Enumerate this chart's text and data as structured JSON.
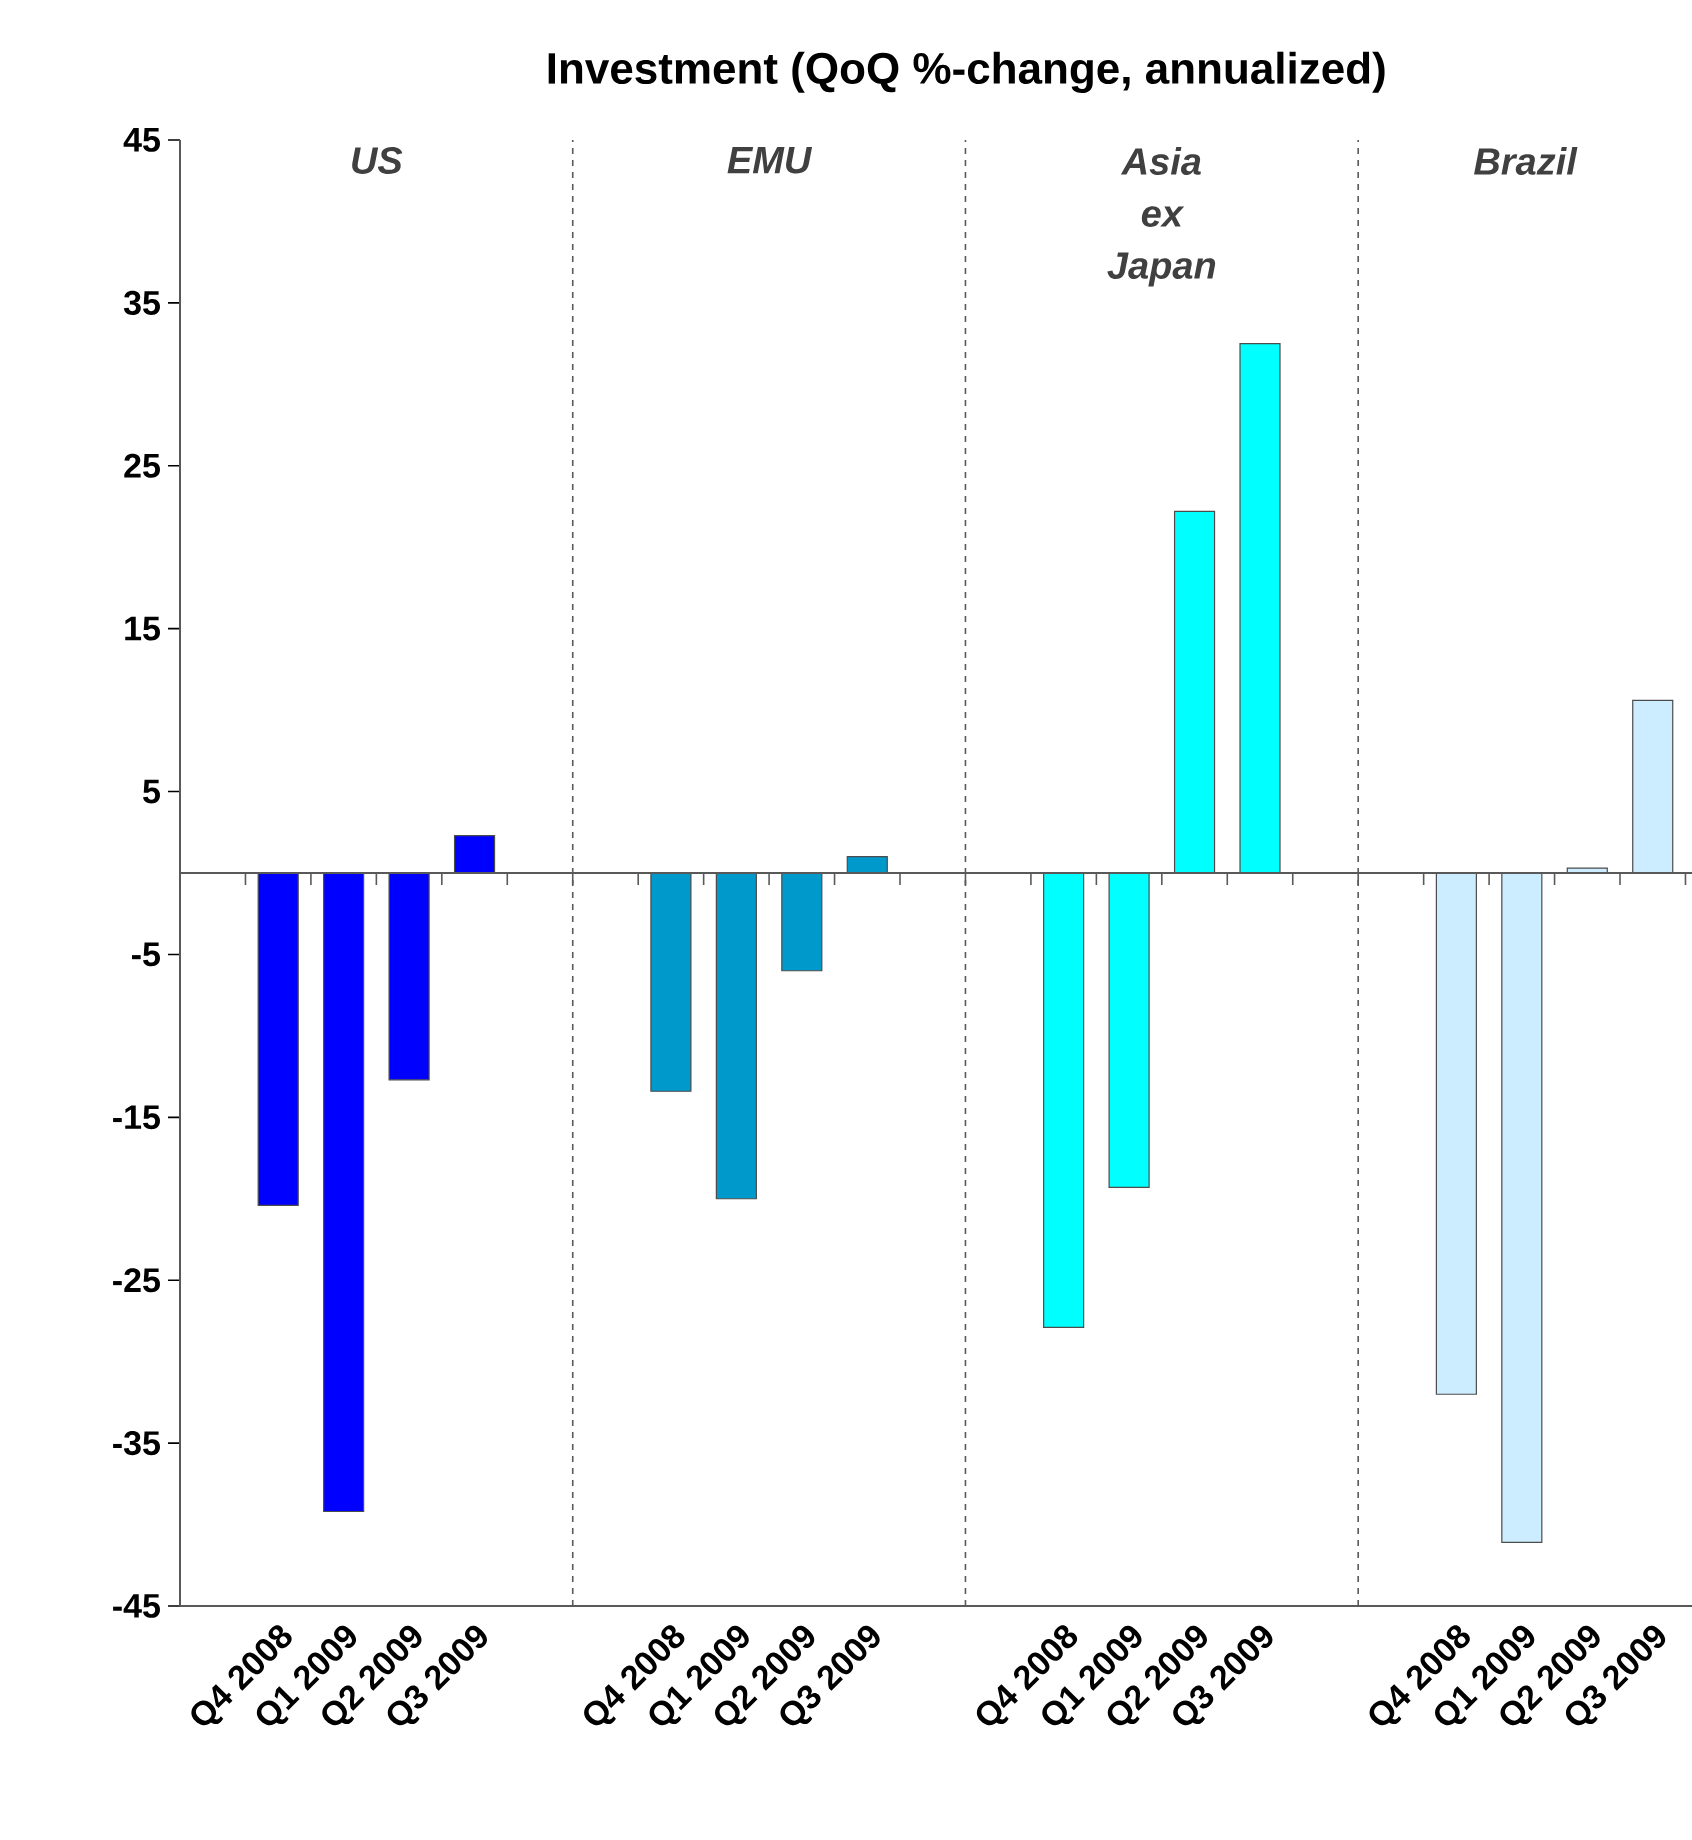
{
  "chart_data": {
    "type": "bar",
    "title": "Investment (QoQ %-change, annualized)",
    "categories": [
      null,
      "Q4 2008",
      "Q1 2009",
      "Q2 2009",
      "Q3 2009",
      null,
      null,
      "Q4 2008",
      "Q1 2009",
      "Q2 2009",
      "Q3 2009",
      null,
      null,
      "Q4 2008",
      "Q1 2009",
      "Q2 2009",
      "Q3 2009",
      null,
      null,
      "Q4 2008",
      "Q1 2009",
      "Q2 2009",
      "Q3 2009"
    ],
    "values": [
      null,
      -20.4,
      -39.2,
      -12.7,
      2.3,
      null,
      null,
      -13.4,
      -20.0,
      -6.0,
      1.0,
      null,
      null,
      -27.9,
      -19.3,
      22.2,
      32.5,
      null,
      null,
      -32.0,
      -41.1,
      0.3,
      10.6
    ],
    "colors": [
      null,
      "#0000ff",
      "#0000ff",
      "#0000ff",
      "#0000ff",
      null,
      null,
      "#0099cc",
      "#0099cc",
      "#0099cc",
      "#0099cc",
      null,
      null,
      "#00ffff",
      "#00ffff",
      "#00ffff",
      "#00ffff",
      null,
      null,
      "#ccecff",
      "#ccecff",
      "#ccecff",
      "#ccecff"
    ],
    "ylim": [
      -45,
      45
    ],
    "yticks": [
      -45,
      -35,
      -25,
      -15,
      -5,
      5,
      15,
      25,
      35,
      45
    ],
    "annotations": [
      "US",
      "EMU",
      "Asia ex Japan",
      "Brazil"
    ]
  }
}
